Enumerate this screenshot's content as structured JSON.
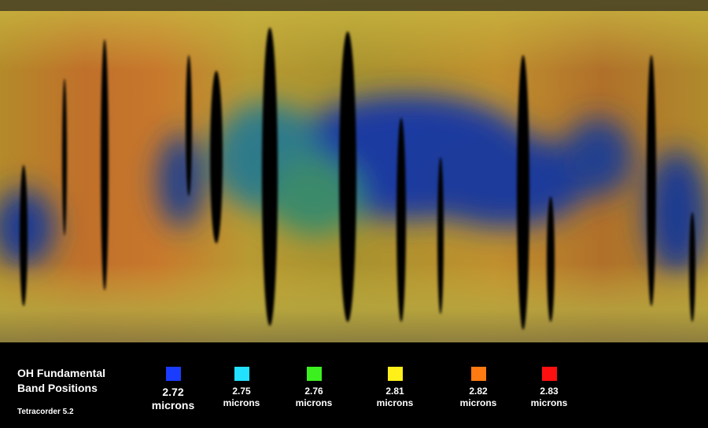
{
  "title_lines": [
    "OH Fundamental",
    "Band Positions"
  ],
  "software": "Tetracorder 5.2",
  "legend": [
    {
      "value": 2.72,
      "unit": "microns",
      "color": "#1a3cff"
    },
    {
      "value": 2.75,
      "unit": "microns",
      "color": "#22e0ff"
    },
    {
      "value": 2.76,
      "unit": "microns",
      "color": "#3cf020"
    },
    {
      "value": 2.81,
      "unit": "microns",
      "color": "#fff01a"
    },
    {
      "value": 2.82,
      "unit": "microns",
      "color": "#ff7a10"
    },
    {
      "value": 2.83,
      "unit": "microns",
      "color": "#ff1010"
    }
  ]
}
